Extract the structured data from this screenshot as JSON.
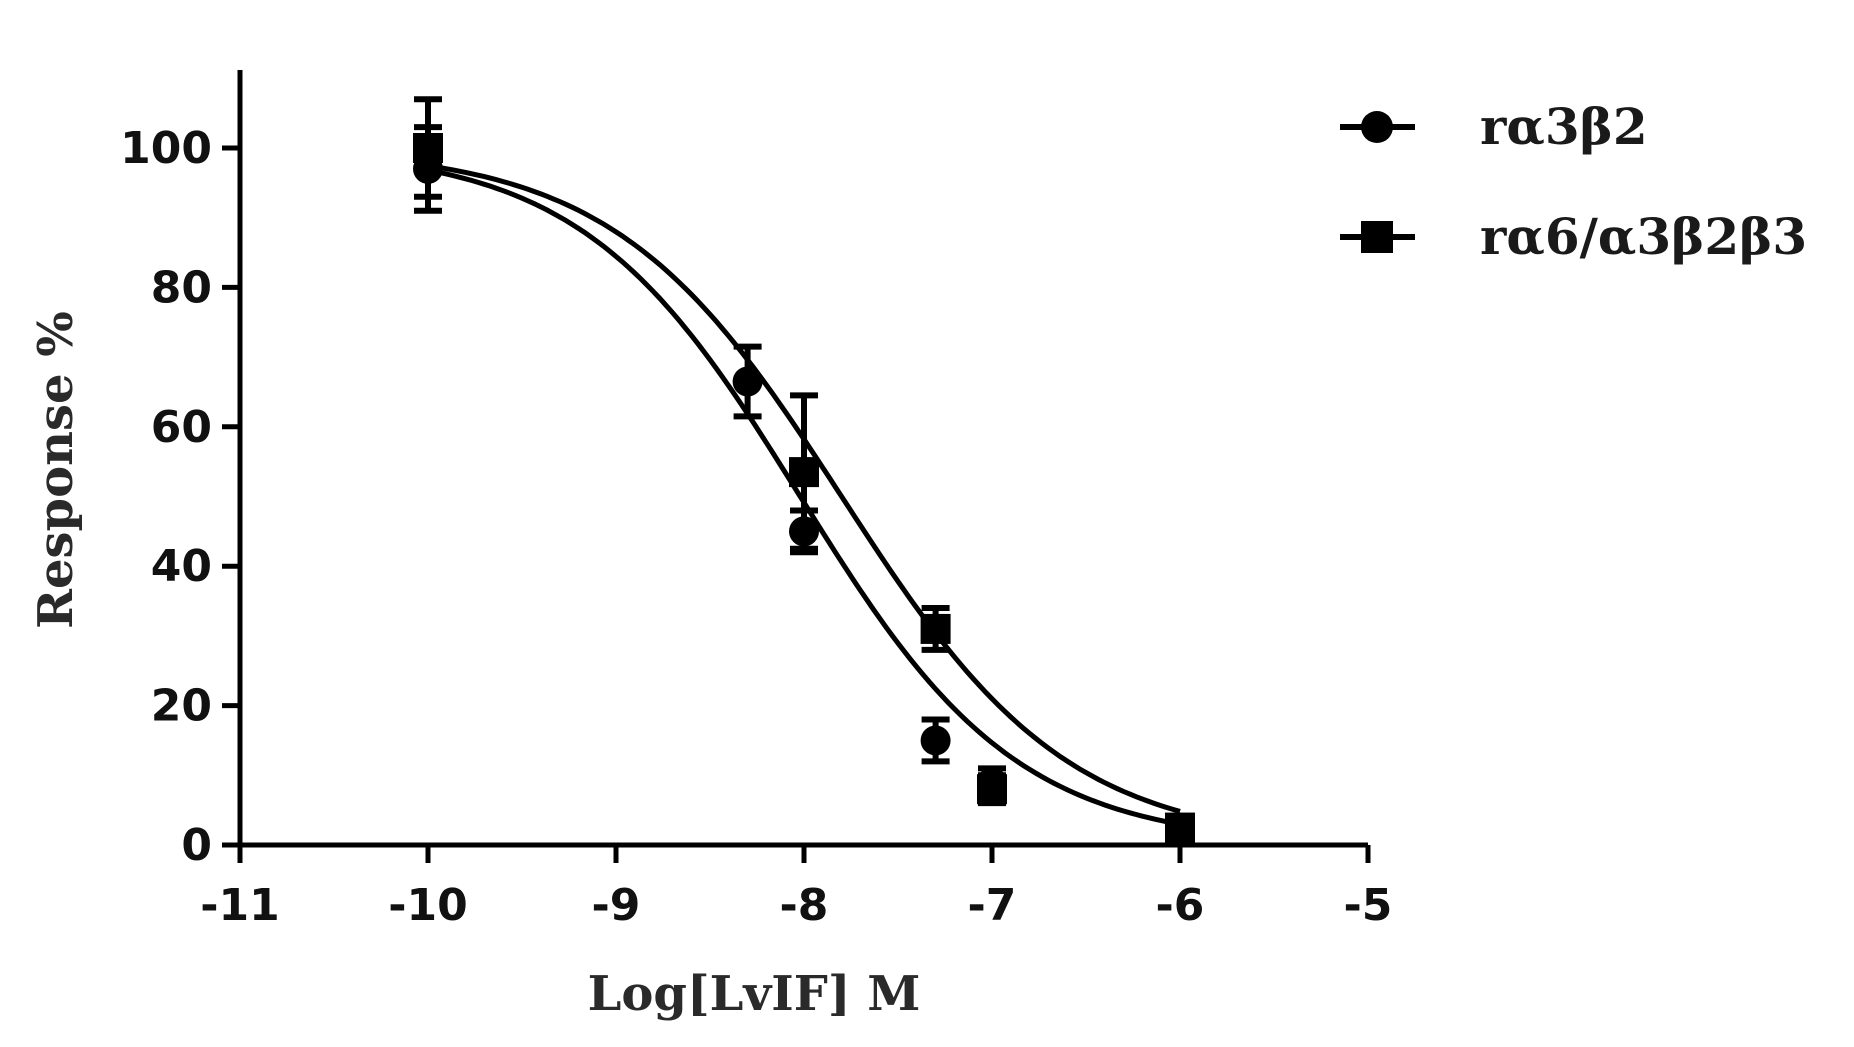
{
  "chart_data": {
    "type": "line",
    "xlabel": "Log[LvIF] M",
    "ylabel": "Response %",
    "xlim": [
      -11,
      -5
    ],
    "ylim": [
      0,
      110
    ],
    "x_ticks": [
      "-11",
      "-10",
      "-9",
      "-8",
      "-7",
      "-6",
      "-5"
    ],
    "y_ticks": [
      "0",
      "20",
      "40",
      "60",
      "80",
      "100"
    ],
    "grid": false,
    "legend_position": "top-right",
    "colors": {
      "series": "#000000"
    },
    "series": [
      {
        "name": "rα3β2",
        "marker": "circle",
        "x": [
          -10,
          -8.3,
          -8,
          -7.3,
          -7,
          -6
        ],
        "y": [
          97,
          66.5,
          45,
          15,
          9,
          2.5
        ],
        "err": [
          6,
          5,
          3,
          3,
          2,
          1
        ],
        "fit": {
          "top": 100,
          "bottom": 0,
          "logIC50": -8.02,
          "hill": 0.75
        }
      },
      {
        "name": "rα6/α3β2β3",
        "marker": "square",
        "x": [
          -10,
          -8,
          -7.3,
          -7,
          -6
        ],
        "y": [
          100,
          53.5,
          31,
          8,
          2.5
        ],
        "err": [
          7,
          11,
          3,
          2,
          1
        ],
        "fit": {
          "top": 100,
          "bottom": 0,
          "logIC50": -7.8,
          "hill": 0.72
        }
      }
    ]
  }
}
